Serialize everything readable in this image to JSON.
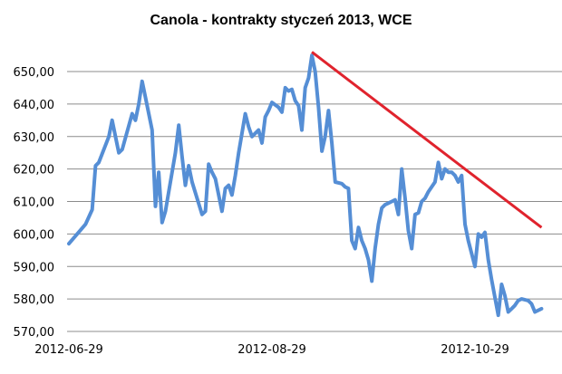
{
  "chart_data": {
    "type": "line",
    "title": "Canola - kontrakty styczeń 2013, WCE",
    "xlabel": "",
    "ylabel": "",
    "ylim": [
      570,
      655
    ],
    "y_ticks": [
      "570,00",
      "580,00",
      "590,00",
      "600,00",
      "610,00",
      "620,00",
      "630,00",
      "640,00",
      "650,00"
    ],
    "x_ticks": [
      {
        "label": "2012-06-29",
        "date": "2012-06-29"
      },
      {
        "label": "2012-08-29",
        "date": "2012-08-29"
      },
      {
        "label": "2012-10-29",
        "date": "2012-10-29"
      }
    ],
    "grid": true,
    "legend": "none",
    "series": [
      {
        "name": "",
        "color": "#558ed5",
        "points": [
          [
            "2012-06-29",
            597.0
          ],
          [
            "2012-07-04",
            603.0
          ],
          [
            "2012-07-06",
            607.5
          ],
          [
            "2012-07-07",
            621.0
          ],
          [
            "2012-07-08",
            622.0
          ],
          [
            "2012-07-11",
            630.0
          ],
          [
            "2012-07-12",
            635.0
          ],
          [
            "2012-07-13",
            630.0
          ],
          [
            "2012-07-14",
            625.0
          ],
          [
            "2012-07-15",
            626.0
          ],
          [
            "2012-07-18",
            637.0
          ],
          [
            "2012-07-19",
            635.0
          ],
          [
            "2012-07-20",
            640.0
          ],
          [
            "2012-07-21",
            647.0
          ],
          [
            "2012-07-22",
            642.0
          ],
          [
            "2012-07-24",
            632.0
          ],
          [
            "2012-07-25",
            608.5
          ],
          [
            "2012-07-26",
            619.0
          ],
          [
            "2012-07-27",
            603.5
          ],
          [
            "2012-07-28",
            607.0
          ],
          [
            "2012-07-31",
            625.0
          ],
          [
            "2012-08-01",
            633.5
          ],
          [
            "2012-08-02",
            624.0
          ],
          [
            "2012-08-03",
            615.0
          ],
          [
            "2012-08-04",
            621.0
          ],
          [
            "2012-08-05",
            616.0
          ],
          [
            "2012-08-08",
            606.0
          ],
          [
            "2012-08-09",
            607.0
          ],
          [
            "2012-08-10",
            621.5
          ],
          [
            "2012-08-11",
            619.0
          ],
          [
            "2012-08-12",
            617.0
          ],
          [
            "2012-08-14",
            607.0
          ],
          [
            "2012-08-15",
            614.0
          ],
          [
            "2012-08-16",
            615.0
          ],
          [
            "2012-08-17",
            612.0
          ],
          [
            "2012-08-18",
            618.0
          ],
          [
            "2012-08-19",
            625.0
          ],
          [
            "2012-08-21",
            637.0
          ],
          [
            "2012-08-22",
            633.0
          ],
          [
            "2012-08-23",
            630.0
          ],
          [
            "2012-08-25",
            632.0
          ],
          [
            "2012-08-26",
            628.0
          ],
          [
            "2012-08-27",
            636.0
          ],
          [
            "2012-08-28",
            638.0
          ],
          [
            "2012-08-29",
            640.5
          ],
          [
            "2012-08-31",
            639.0
          ],
          [
            "2012-09-01",
            637.5
          ],
          [
            "2012-09-02",
            645.0
          ],
          [
            "2012-09-03",
            644.0
          ],
          [
            "2012-09-04",
            644.5
          ],
          [
            "2012-09-05",
            641.0
          ],
          [
            "2012-09-06",
            639.5
          ],
          [
            "2012-09-07",
            632.0
          ],
          [
            "2012-09-08",
            645.0
          ],
          [
            "2012-09-09",
            648.0
          ],
          [
            "2012-09-10",
            655.0
          ],
          [
            "2012-09-11",
            650.0
          ],
          [
            "2012-09-12",
            639.0
          ],
          [
            "2012-09-13",
            625.5
          ],
          [
            "2012-09-14",
            630.0
          ],
          [
            "2012-09-15",
            638.0
          ],
          [
            "2012-09-16",
            628.0
          ],
          [
            "2012-09-17",
            616.0
          ],
          [
            "2012-09-19",
            615.5
          ],
          [
            "2012-09-20",
            614.5
          ],
          [
            "2012-09-21",
            614.0
          ],
          [
            "2012-09-22",
            598.0
          ],
          [
            "2012-09-23",
            595.5
          ],
          [
            "2012-09-24",
            602.0
          ],
          [
            "2012-09-25",
            598.0
          ],
          [
            "2012-09-26",
            595.5
          ],
          [
            "2012-09-27",
            592.0
          ],
          [
            "2012-09-28",
            585.5
          ],
          [
            "2012-09-29",
            595.5
          ],
          [
            "2012-09-30",
            603.0
          ],
          [
            "2012-10-01",
            608.0
          ],
          [
            "2012-10-02",
            609.0
          ],
          [
            "2012-10-03",
            609.5
          ],
          [
            "2012-10-04",
            610.0
          ],
          [
            "2012-10-05",
            610.5
          ],
          [
            "2012-10-06",
            606.0
          ],
          [
            "2012-10-07",
            620.0
          ],
          [
            "2012-10-08",
            611.0
          ],
          [
            "2012-10-09",
            601.0
          ],
          [
            "2012-10-10",
            595.5
          ],
          [
            "2012-10-11",
            606.0
          ],
          [
            "2012-10-12",
            606.5
          ],
          [
            "2012-10-13",
            610.0
          ],
          [
            "2012-10-14",
            611.0
          ],
          [
            "2012-10-15",
            613.0
          ],
          [
            "2012-10-17",
            616.0
          ],
          [
            "2012-10-18",
            622.0
          ],
          [
            "2012-10-19",
            617.0
          ],
          [
            "2012-10-20",
            620.0
          ],
          [
            "2012-10-21",
            619.0
          ],
          [
            "2012-10-22",
            619.0
          ],
          [
            "2012-10-23",
            618.0
          ],
          [
            "2012-10-24",
            616.0
          ],
          [
            "2012-10-25",
            618.0
          ],
          [
            "2012-10-26",
            603.0
          ],
          [
            "2012-10-27",
            598.0
          ],
          [
            "2012-10-29",
            590.0
          ],
          [
            "2012-10-30",
            600.0
          ],
          [
            "2012-10-31",
            599.0
          ],
          [
            "2012-11-01",
            600.5
          ],
          [
            "2012-11-02",
            592.0
          ],
          [
            "2012-11-03",
            586.0
          ],
          [
            "2012-11-05",
            575.0
          ],
          [
            "2012-11-06",
            584.5
          ],
          [
            "2012-11-07",
            581.0
          ],
          [
            "2012-11-08",
            576.0
          ],
          [
            "2012-11-09",
            577.0
          ],
          [
            "2012-11-10",
            578.0
          ],
          [
            "2012-11-11",
            579.5
          ],
          [
            "2012-11-12",
            580.0
          ],
          [
            "2012-11-14",
            579.5
          ],
          [
            "2012-11-15",
            578.5
          ],
          [
            "2012-11-16",
            576.0
          ],
          [
            "2012-11-18",
            577.0
          ]
        ]
      }
    ],
    "annotations": [
      {
        "type": "trend-line",
        "color": "#e0232d",
        "from": [
          "2012-09-10",
          656.0
        ],
        "to": [
          "2012-11-18",
          602.0
        ]
      }
    ]
  }
}
